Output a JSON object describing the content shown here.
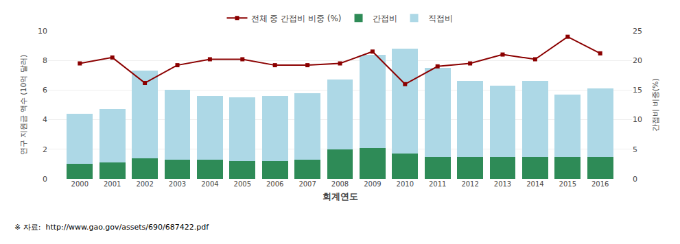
{
  "chart_data": {
    "type": "bar",
    "stacked": true,
    "categories": [
      "2000",
      "2001",
      "2002",
      "2003",
      "2004",
      "2005",
      "2006",
      "2007",
      "2008",
      "2009",
      "2010",
      "2011",
      "2012",
      "2013",
      "2014",
      "2015",
      "2016"
    ],
    "series": [
      {
        "name": "간접비",
        "type": "bar",
        "color": "#2E8B57",
        "values": [
          1.0,
          1.1,
          1.4,
          1.3,
          1.3,
          1.2,
          1.2,
          1.3,
          2.0,
          2.1,
          1.7,
          1.5,
          1.5,
          1.5,
          1.5,
          1.5,
          1.5
        ]
      },
      {
        "name": "직접비",
        "type": "bar",
        "color": "#ADD8E6",
        "values": [
          3.4,
          3.6,
          5.9,
          4.7,
          4.3,
          4.3,
          4.4,
          4.5,
          4.7,
          6.3,
          7.1,
          6.0,
          5.1,
          4.8,
          5.1,
          4.2,
          4.6
        ]
      },
      {
        "name": "전체 중 간접비 비중 (%)",
        "type": "line",
        "axis": "y2",
        "color": "#8B0000",
        "marker": "square",
        "line_style": "solid",
        "values": [
          19.5,
          20.5,
          16.2,
          19.2,
          20.2,
          20.2,
          19.2,
          19.2,
          19.5,
          21.5,
          16.0,
          19.0,
          19.5,
          21.0,
          20.2,
          24.0,
          21.2
        ]
      }
    ],
    "xlabel": "회계연도",
    "ylabel": "연구 지원금 액수 (10억 달러)",
    "y2label": "간접비 비중(%)",
    "ylim": [
      0,
      10
    ],
    "yticks": [
      0,
      2,
      4,
      6,
      8,
      10
    ],
    "y2lim": [
      0,
      25
    ],
    "y2ticks": [
      0,
      5,
      10,
      15,
      20,
      25
    ],
    "grid": true,
    "legend": "top",
    "annotations": [
      "※ 자료:  http://www.gao.gov/assets/690/687422.pdf"
    ]
  }
}
